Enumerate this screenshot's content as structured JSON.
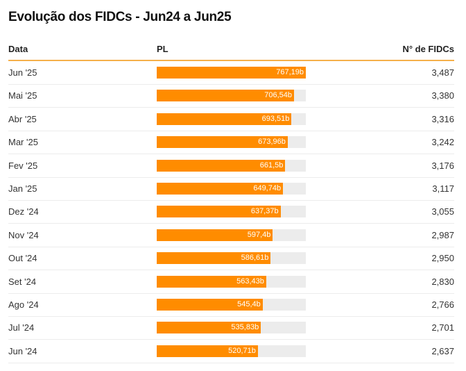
{
  "chart_data": {
    "type": "table",
    "title": "Evolução dos FIDCs - Jun24 a Jun25",
    "columns": [
      "Data",
      "PL",
      "N° de FIDCs"
    ],
    "bar_color": "#ff8c00",
    "track_color": "#ececec",
    "rows": [
      {
        "date": "Jun '25",
        "pl": 767.19,
        "pl_label": "767,19b",
        "count": "3,487"
      },
      {
        "date": "Mai '25",
        "pl": 706.54,
        "pl_label": "706,54b",
        "count": "3,380"
      },
      {
        "date": "Abr '25",
        "pl": 693.51,
        "pl_label": "693,51b",
        "count": "3,316"
      },
      {
        "date": "Mar '25",
        "pl": 673.96,
        "pl_label": "673,96b",
        "count": "3,242"
      },
      {
        "date": "Fev '25",
        "pl": 661.5,
        "pl_label": "661,5b",
        "count": "3,176"
      },
      {
        "date": "Jan '25",
        "pl": 649.74,
        "pl_label": "649,74b",
        "count": "3,117"
      },
      {
        "date": "Dez '24",
        "pl": 637.37,
        "pl_label": "637,37b",
        "count": "3,055"
      },
      {
        "date": "Nov '24",
        "pl": 597.4,
        "pl_label": "597,4b",
        "count": "2,987"
      },
      {
        "date": "Out '24",
        "pl": 586.61,
        "pl_label": "586,61b",
        "count": "2,950"
      },
      {
        "date": "Set '24",
        "pl": 563.43,
        "pl_label": "563,43b",
        "count": "2,830"
      },
      {
        "date": "Ago '24",
        "pl": 545.4,
        "pl_label": "545,4b",
        "count": "2,766"
      },
      {
        "date": "Jul '24",
        "pl": 535.83,
        "pl_label": "535,83b",
        "count": "2,701"
      },
      {
        "date": "Jun '24",
        "pl": 520.71,
        "pl_label": "520,71b",
        "count": "2,637"
      }
    ]
  }
}
